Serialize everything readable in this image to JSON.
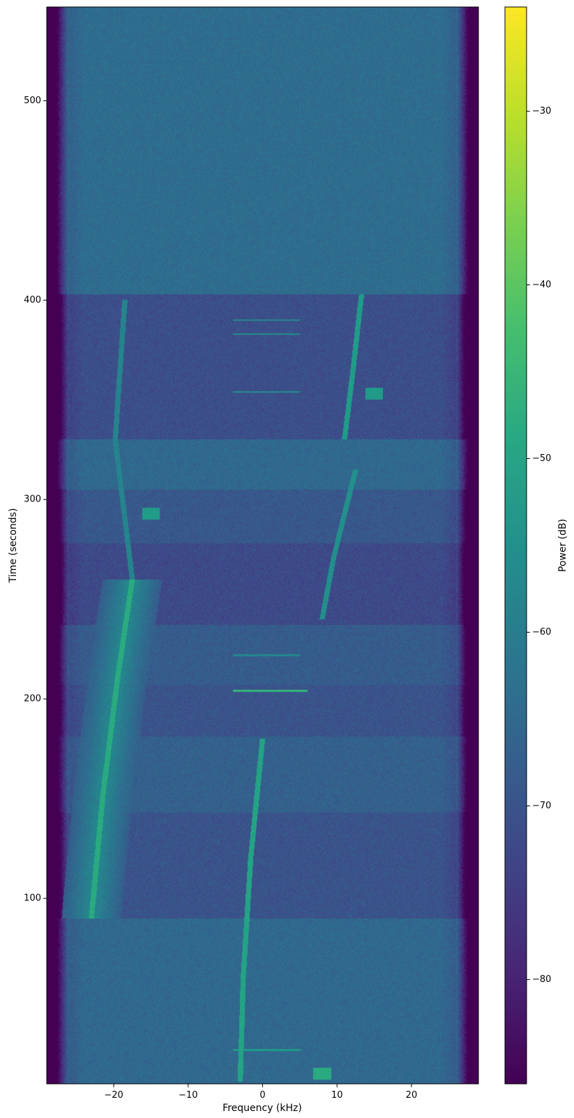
{
  "chart_data": {
    "type": "heatmap",
    "title": "",
    "xlabel": "Frequency (kHz)",
    "ylabel": "Time (seconds)",
    "colorbar_label": "Power (dB)",
    "colormap": "viridis",
    "xlim": [
      -29,
      29
    ],
    "ylim": [
      7,
      547
    ],
    "clim": [
      -86,
      -24
    ],
    "x_ticks": [
      {
        "value": -20,
        "label": "−20"
      },
      {
        "value": -10,
        "label": "−10"
      },
      {
        "value": 0,
        "label": "0"
      },
      {
        "value": 10,
        "label": "10"
      },
      {
        "value": 20,
        "label": "20"
      }
    ],
    "y_ticks": [
      {
        "value": 100,
        "label": "100"
      },
      {
        "value": 200,
        "label": "200"
      },
      {
        "value": 300,
        "label": "300"
      },
      {
        "value": 400,
        "label": "400"
      },
      {
        "value": 500,
        "label": "500"
      }
    ],
    "colorbar_ticks": [
      {
        "value": -80,
        "label": "−80"
      },
      {
        "value": -70,
        "label": "−70"
      },
      {
        "value": -60,
        "label": "−60"
      },
      {
        "value": -50,
        "label": "−50"
      },
      {
        "value": -40,
        "label": "−40"
      },
      {
        "value": -30,
        "label": "−30"
      }
    ],
    "passband_edge_khz": 26,
    "noise_floor_segments_db": [
      {
        "t0": 7,
        "t1": 90,
        "level": -65
      },
      {
        "t0": 90,
        "t1": 143,
        "level": -70
      },
      {
        "t0": 143,
        "t1": 181,
        "level": -67
      },
      {
        "t0": 181,
        "t1": 207,
        "level": -70
      },
      {
        "t0": 207,
        "t1": 237,
        "level": -68
      },
      {
        "t0": 237,
        "t1": 278,
        "level": -72
      },
      {
        "t0": 278,
        "t1": 305,
        "level": -69
      },
      {
        "t0": 305,
        "t1": 330,
        "level": -65
      },
      {
        "t0": 330,
        "t1": 403,
        "level": -71
      },
      {
        "t0": 403,
        "t1": 547,
        "level": -64
      }
    ],
    "signal_traces": [
      {
        "t": [
          90,
          150,
          210,
          260
        ],
        "f": [
          -23,
          -21.5,
          -19.5,
          -17.5
        ],
        "level": -48
      },
      {
        "t": [
          260,
          330,
          400
        ],
        "f": [
          -17.5,
          -19.8,
          -18.5
        ],
        "level": -58
      },
      {
        "t": [
          8,
          60,
          120,
          180
        ],
        "f": [
          -3,
          -2.6,
          -1.6,
          0
        ],
        "level": -50
      },
      {
        "t": [
          330,
          360,
          403
        ],
        "f": [
          11,
          12,
          13.3
        ],
        "level": -52
      },
      {
        "t": [
          240,
          270,
          300,
          315
        ],
        "f": [
          8,
          9.5,
          11.5,
          12.5
        ],
        "level": -55
      }
    ],
    "horizontal_bursts": [
      {
        "t": 24,
        "f0": -4,
        "f1": 5,
        "level": -52
      },
      {
        "t": 204,
        "f0": -4,
        "f1": 6,
        "level": -45
      },
      {
        "t": 222,
        "f0": -4,
        "f1": 5,
        "level": -57
      },
      {
        "t": 354,
        "f0": -4,
        "f1": 5,
        "level": -55
      },
      {
        "t": 383,
        "f0": -4,
        "f1": 5,
        "level": -56
      },
      {
        "t": 390,
        "f0": -4,
        "f1": 5,
        "level": -57
      }
    ],
    "hot_spots": [
      {
        "t": 12,
        "f": 8,
        "level": -48
      },
      {
        "t": 293,
        "f": -15,
        "level": -52
      },
      {
        "t": 353,
        "f": 15,
        "level": -52
      }
    ]
  }
}
